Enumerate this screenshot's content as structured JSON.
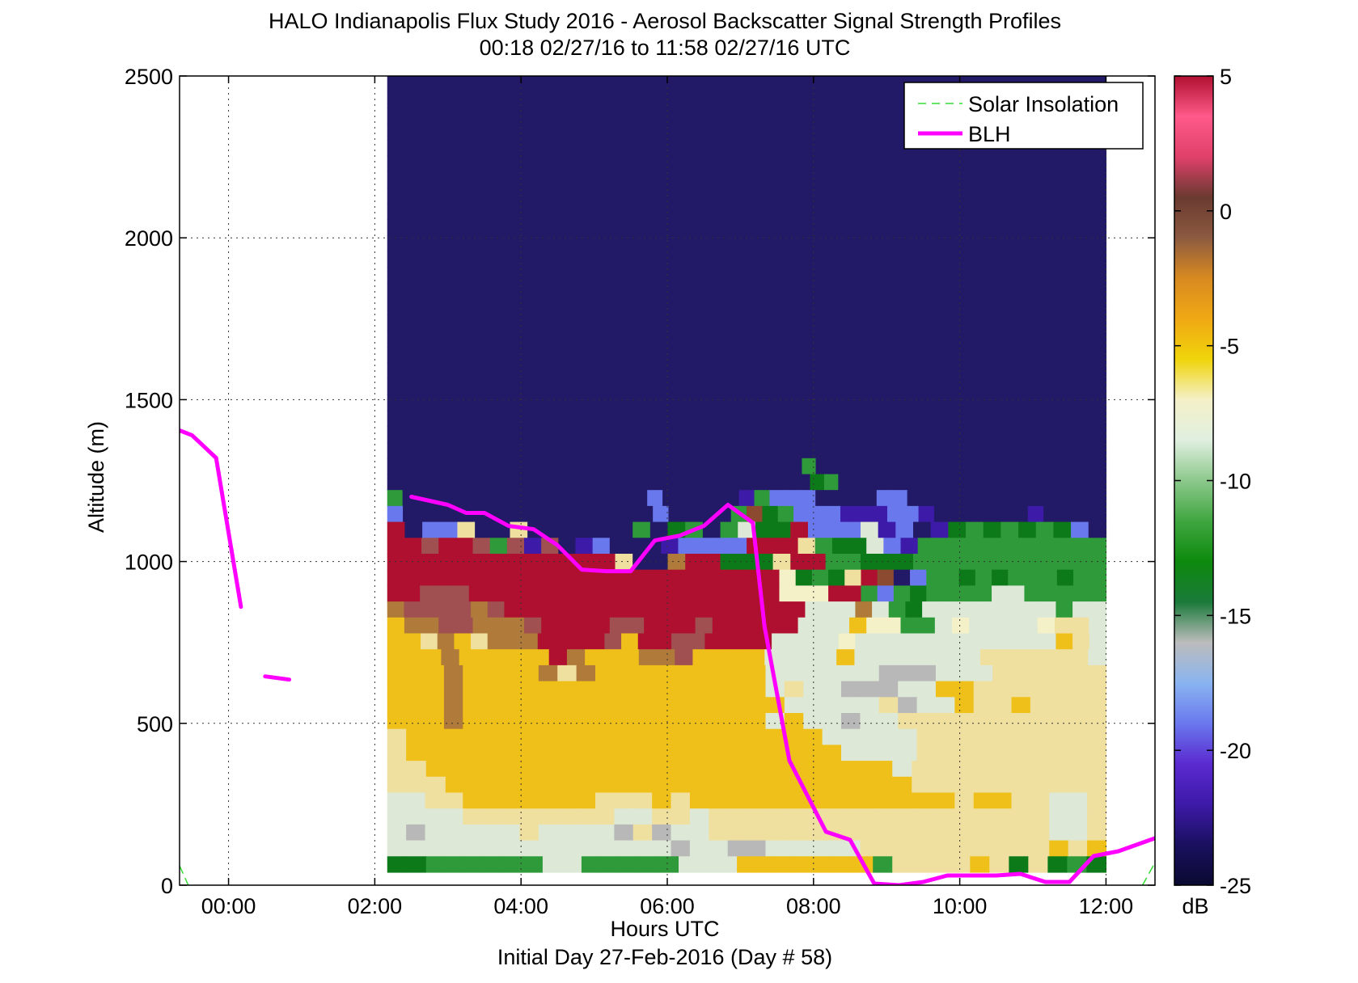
{
  "chart_data": {
    "type": "heatmap",
    "title": "HALO Indianapolis Flux Study 2016 - Aerosol Backscatter Signal Strength Profiles",
    "subtitle": "00:18 02/27/16 to 11:58 02/27/16  UTC",
    "xlabel": "Hours UTC",
    "xlabel2": "Initial Day 27-Feb-2016 (Day # 58)",
    "ylabel": "Altitude (m)",
    "xlim_hours": [
      -0.67,
      12.67
    ],
    "ylim": [
      0,
      2500
    ],
    "x_ticks": [
      {
        "value": 0,
        "label": "00:00"
      },
      {
        "value": 2,
        "label": "02:00"
      },
      {
        "value": 4,
        "label": "04:00"
      },
      {
        "value": 6,
        "label": "06:00"
      },
      {
        "value": 8,
        "label": "08:00"
      },
      {
        "value": 10,
        "label": "10:00"
      },
      {
        "value": 12,
        "label": "12:00"
      }
    ],
    "y_ticks": [
      {
        "value": 0,
        "label": "0"
      },
      {
        "value": 500,
        "label": "500"
      },
      {
        "value": 1000,
        "label": "1000"
      },
      {
        "value": 1500,
        "label": "1500"
      },
      {
        "value": 2000,
        "label": "2000"
      },
      {
        "value": 2500,
        "label": "2500"
      }
    ],
    "grid": true,
    "heatmap": {
      "x_start_hours": 2.17,
      "x_end_hours": 12.0,
      "y_start": 40,
      "y_end": 2500,
      "rows_from_top": [
        "ddddddddddddddddddddddddddddddddddddddddddddddddddd",
        "ddddddddddddddddddddddddddddddddddddddddddddddddddd",
        "ddddddddddddddddddddddddddddddddddddddddddddddddddd",
        "ddddddddddddddddddddddddddddddddddddddddddddddddddd",
        "ddddddddddddddddddddddddddddddddddddddddddddddddddd",
        "ddddddddddddddddddddddddddddddddddddddddddddddddddd",
        "ddddddddddddddddddddddddddddddddddddddddddddddddddd",
        "ddddddddddddddddddddddddddddddddddddddddddddddddddd",
        "ddddddddddddddddddddddddddddddddddddddddddddddddddd",
        "ddddddddddddddddddddddddddddddddddddddddddddddddddd",
        "ddddddddddddddddddddddddddddddddddddddddddddddddddd",
        "ddddddddddddddddddddddddddddddddddddddddddddddddddd",
        "ddddddddddddddddddddddddddddddddddddddddddddddddddd",
        "ddddddddddddddddddddddddddddddddddddddddddddddddddd",
        "ddddddddddddddddddddddddddddddddddddddddddddddddddd",
        "ddddddddddddddddddddddddddddddddddddddddddddddddddd",
        "ddddddddddddddddddddddddddddddddddddddddddddddddddd",
        "ddddddddddddddddddddddddddddddddddddddddddddddddddd",
        "ddddddddddddddddddddddddddddddddddddddddddddddddddd",
        "ddddddddddddddddddddddddddddddddddddddddddddddddddd",
        "ddddddddddddddddddddddddddddddddddddddddddddddddddd",
        "ddddddddddddddddddddddddddddddddddddddddddddddddddd",
        "ddddddddddddddddddddddddddddddddddddddddddddddddddd",
        "ddddddddddddddddddddddddddddddddddddddddddddddddddd",
        "ddddddddddddddddddddddddddddddgddddddddddddddddddddd",
        "ddddddddddddddddddddddddddddddGgPdddddddddddddddddd",
        "gddddddddddddddddbdddddpgbbbddddbbddddddddddddd",
        "bddddddddddddddddbddddgmGgbbbpppbbpddddddpdddd",
        "RdbbyddyddddddgdGgdgwGGRbbbwpbdpGgGgGgGbd",
        "RRrRRrgrprdpbdddpbbbbRRRygGGwbpggggggggggg",
        "RRRRRRRRRRRRRyddoRRGGGyRRggGGGggggggggggg",
        "RRRRRRRRRRRRRRRRRRRRRRRRWGgGyRmcbggGgGgggGgg",
        "RRrrrRRRRRRRRRRRRRRRRRRRWWWRRgbgGggggwwggggg",
        "orrrrorRRRRRRRRRRRRRRRRRRwwwowgGwwwwwwwwgww",
        "YoorrooorRRRRrrRRRrRRRRRwwwYWWggwWwwwwWyyw",
        "YYyoYyoooRRRRrYRRrrRRRRwwwwWwwwwwwwwwwwwYyw",
        "YYYoYYYYYRoYYYoorYYYYwwwwYwwwwwwwyyyyyyw",
        "YYYoYYYYoyoYYYYYYYYYwwwwwwssswwwyyyyyy",
        "YYYoYYYYYYYYYYYYYYYYwywwssswwYYyyyyyyy",
        "YYYoYYYYYYYYYYYYYYYYYwwwwwyswwYyyYyyyy",
        "YYYoYYYYYYYYYYYYYYYYwYwwswwyyyyyyyyyyy",
        "yYYYYYYYYYYYYYYYYYYYYYYwwwwwyyyyyyyyyy",
        "yYYYYYYYYYYYYYYYYYYYYYYYwwwwyyyyyyyyyy",
        "yyYYYYYYYYYYYYYYYYYYYYYYYYwyyyyyyyyyy",
        "yyyYYYYYYYYYYYYYYYYYYYYYYYYyyyyyyyyyy",
        "wwyyYYYYYYYyyyYyYYYYYYYYYYYYYYyYYyywwy",
        "wwwwyyyyyyyywwyywyyyyyyyyyyyyyyyyyywwy",
        "wswwwwwywwwwsyswwyyyyyyyyyyyyyyyyyywwy",
        "wwwwwwwwwwwwwwwswwsswwwwwyyyyyyyyyyYyY",
        "GGggggggwwgggggwwwYYYYYYYgyyyyYyGyGgG"
      ]
    },
    "legend": {
      "placement": "top-right",
      "entries": [
        {
          "label": "Solar Insolation",
          "color": "#33dd33",
          "style": "dashed"
        },
        {
          "label": "BLH",
          "color": "#ff00ff",
          "style": "solid"
        }
      ]
    },
    "series": [
      {
        "name": "BLH",
        "color": "#ff00ff",
        "segments": [
          [
            [
              -0.67,
              1405
            ],
            [
              -0.5,
              1390
            ],
            [
              -0.17,
              1320
            ],
            [
              0.17,
              860
            ]
          ],
          [
            [
              0.5,
              645
            ],
            [
              0.83,
              635
            ]
          ],
          [
            [
              2.5,
              1200
            ],
            [
              3.0,
              1175
            ],
            [
              3.25,
              1150
            ],
            [
              3.5,
              1150
            ],
            [
              3.83,
              1110
            ],
            [
              4.17,
              1100
            ],
            [
              4.5,
              1050
            ],
            [
              4.83,
              975
            ],
            [
              5.17,
              970
            ],
            [
              5.5,
              970
            ],
            [
              5.83,
              1065
            ],
            [
              6.17,
              1080
            ],
            [
              6.5,
              1110
            ],
            [
              6.83,
              1175
            ],
            [
              7.17,
              1120
            ],
            [
              7.33,
              800
            ],
            [
              7.67,
              385
            ],
            [
              8.17,
              165
            ],
            [
              8.5,
              140
            ],
            [
              8.83,
              5
            ],
            [
              9.17,
              0
            ],
            [
              9.5,
              10
            ],
            [
              9.83,
              30
            ],
            [
              10.5,
              30
            ],
            [
              10.83,
              35
            ],
            [
              11.17,
              10
            ],
            [
              11.5,
              10
            ],
            [
              11.83,
              90
            ],
            [
              12.17,
              105
            ],
            [
              12.67,
              145
            ]
          ]
        ]
      },
      {
        "name": "Solar Insolation",
        "color": "#33dd33",
        "segments": [
          [
            [
              -0.67,
              60
            ],
            [
              -0.55,
              0
            ]
          ],
          [
            [
              12.5,
              0
            ],
            [
              12.67,
              70
            ]
          ]
        ]
      }
    ],
    "colorbar": {
      "label": "dB",
      "range": [
        -25,
        5
      ],
      "ticks": [
        5,
        0,
        -5,
        -10,
        -15,
        -20,
        -25
      ],
      "tick_labels": [
        "5",
        "0",
        "-5",
        "-10",
        "-15",
        "-20",
        "-25"
      ],
      "colors_bottom_to_top": [
        "#0a0a30",
        "#1a1060",
        "#3d1aa8",
        "#5a2ad0",
        "#6a78ee",
        "#8ab4f0",
        "#bcbcbc",
        "#1a7a3a",
        "#0d8a0d",
        "#40a640",
        "#8cc88c",
        "#e0efe0",
        "#f4f0c8",
        "#f0d40a",
        "#f0a814",
        "#d88a20",
        "#8c5a40",
        "#6a3a30",
        "#e0406a",
        "#ff5a8a",
        "#b01030"
      ]
    }
  }
}
